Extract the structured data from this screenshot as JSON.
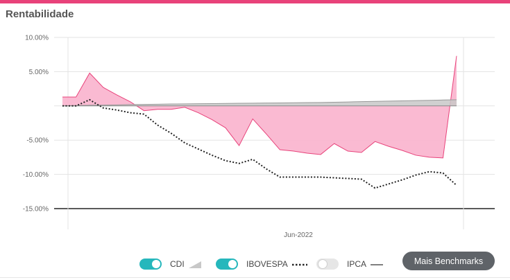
{
  "header": {
    "title": "Rentabilidade"
  },
  "colors": {
    "accent": "#e8427a",
    "toggle_on": "#26b7bc",
    "fund_fill": "#f9b3cd",
    "fund_line": "#e8427a",
    "cdi_fill": "#c8c8c8",
    "button_bg": "#5f6368"
  },
  "chart_data": {
    "type": "area",
    "ylim": [
      -15,
      10
    ],
    "yticks": [
      10,
      5,
      0,
      -5,
      -10,
      -15
    ],
    "ytick_labels": [
      "10.00%",
      "5.00%",
      "",
      "-5.00%",
      "-10.00%",
      "-15.00%"
    ],
    "xtick_labels": [
      "Jun-2022"
    ],
    "x_index_range": [
      0,
      30
    ],
    "series": [
      {
        "name": "",
        "style": "pink-area",
        "values": [
          1.3,
          1.3,
          4.8,
          2.7,
          1.6,
          0.6,
          -0.7,
          -0.5,
          -0.5,
          -0.2,
          -1.0,
          -2.0,
          -3.2,
          -5.8,
          -1.9,
          -4.1,
          -6.4,
          -6.6,
          -6.9,
          -7.1,
          -5.5,
          -6.6,
          -6.8,
          -5.2,
          -5.9,
          -6.5,
          -7.2,
          -7.5,
          -7.6,
          7.3
        ]
      },
      {
        "name": "CDI",
        "style": "gray-area",
        "values": [
          0.0,
          0.05,
          0.1,
          0.12,
          0.15,
          0.2,
          0.22,
          0.25,
          0.28,
          0.3,
          0.32,
          0.34,
          0.36,
          0.38,
          0.4,
          0.42,
          0.44,
          0.46,
          0.48,
          0.5,
          0.54,
          0.58,
          0.62,
          0.66,
          0.7,
          0.74,
          0.78,
          0.82,
          0.86,
          0.9
        ]
      },
      {
        "name": "IBOVESPA",
        "style": "dotted",
        "values": [
          0.0,
          0.0,
          0.9,
          -0.3,
          -0.6,
          -1.0,
          -1.2,
          -2.8,
          -4.0,
          -5.4,
          -6.3,
          -7.2,
          -8.0,
          -8.4,
          -7.8,
          -9.2,
          -10.4,
          -10.4,
          -10.4,
          -10.4,
          -10.5,
          -10.6,
          -10.7,
          -12.0,
          -11.4,
          -10.8,
          -10.1,
          -9.6,
          -9.8,
          -11.6
        ]
      }
    ],
    "grid": true
  },
  "legend": {
    "items": [
      {
        "label": "CDI",
        "state": "on"
      },
      {
        "label": "IBOVESPA",
        "state": "on"
      },
      {
        "label": "IPCA",
        "state": "off"
      }
    ]
  },
  "buttons": {
    "more_benchmarks": "Mais Benchmarks"
  }
}
